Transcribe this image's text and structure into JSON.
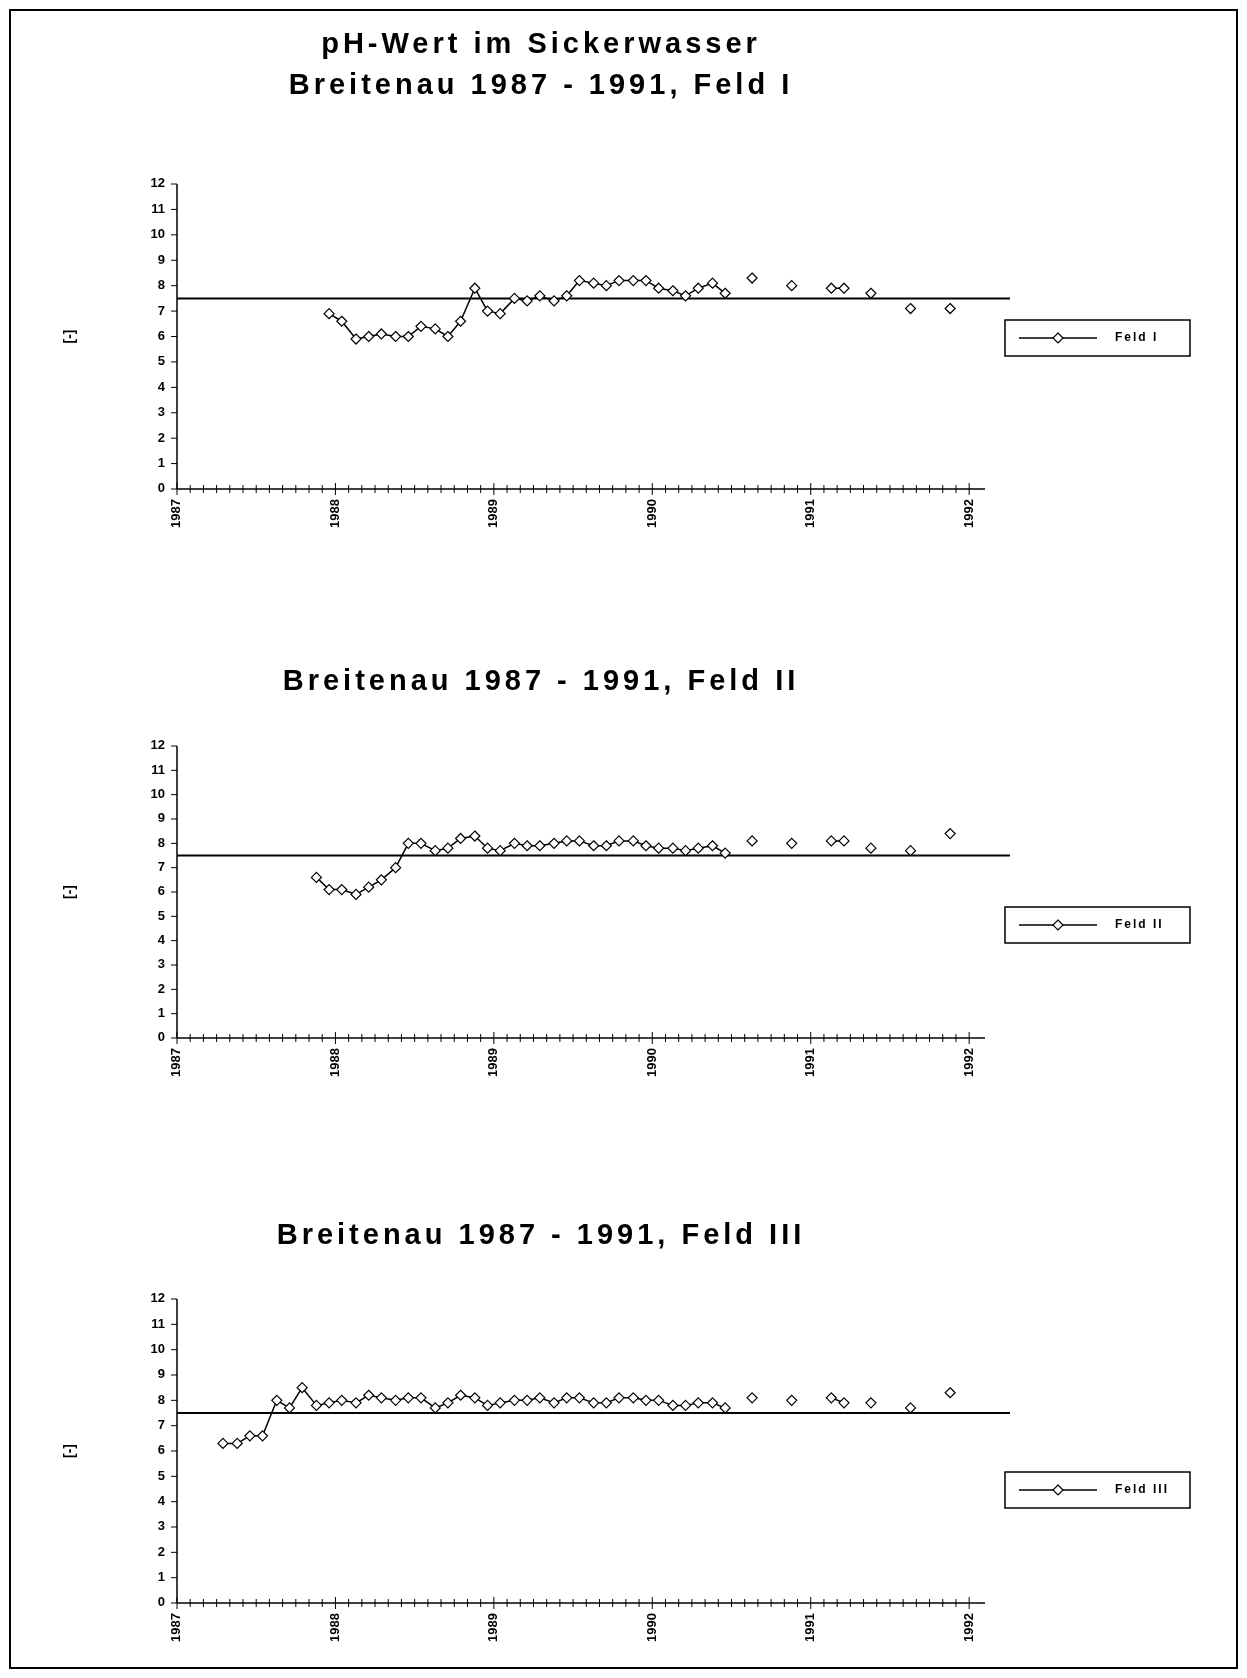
{
  "chart_data": [
    {
      "type": "line",
      "title": "pH-Wert im Sickerwasser",
      "subtitle": "Breitenau 1987 - 1991, Feld I",
      "ylabel": "[-]",
      "xlim": [
        1987,
        1992.1
      ],
      "xticks": [
        1987,
        1988,
        1989,
        1990,
        1991,
        1992
      ],
      "ylim": [
        0,
        12
      ],
      "yticks": [
        0,
        1,
        2,
        3,
        4,
        5,
        6,
        7,
        8,
        9,
        10,
        11,
        12
      ],
      "marker": "diamond",
      "legend": "right",
      "ref_lines": [
        {
          "axis": "y",
          "value": 7.5,
          "color": "#000000"
        }
      ],
      "x": [
        1987.96,
        1988.04,
        1988.13,
        1988.21,
        1988.29,
        1988.38,
        1988.46,
        1988.54,
        1988.63,
        1988.71,
        1988.79,
        1988.88,
        1988.96,
        1989.04,
        1989.13,
        1989.21,
        1989.29,
        1989.38,
        1989.46,
        1989.54,
        1989.63,
        1989.71,
        1989.79,
        1989.88,
        1989.96,
        1990.04,
        1990.13,
        1990.21,
        1990.29,
        1990.38,
        1990.46,
        1990.54,
        1990.63,
        1990.71,
        1990.79,
        1990.88,
        1990.96,
        1991.04,
        1991.13,
        1991.21,
        1991.29,
        1991.38,
        1991.46,
        1991.54,
        1991.63,
        1991.71,
        1991.79,
        1991.88
      ],
      "series": [
        {
          "name": "Feld I",
          "color": "#000000",
          "values": [
            6.9,
            6.6,
            5.9,
            6.0,
            6.1,
            6.0,
            6.0,
            6.4,
            6.3,
            6.0,
            6.6,
            7.9,
            7.0,
            6.9,
            7.5,
            7.4,
            7.6,
            7.4,
            7.6,
            8.2,
            8.1,
            8.0,
            8.2,
            8.2,
            8.2,
            7.9,
            7.8,
            7.6,
            7.9,
            8.1,
            7.7,
            null,
            8.3,
            null,
            null,
            8.0,
            null,
            null,
            7.9,
            7.9,
            null,
            7.7,
            null,
            null,
            7.1,
            null,
            null,
            7.1
          ]
        }
      ]
    },
    {
      "type": "line",
      "title": "Breitenau 1987 - 1991, Feld II",
      "ylabel": "[-]",
      "xlim": [
        1987,
        1992.1
      ],
      "xticks": [
        1987,
        1988,
        1989,
        1990,
        1991,
        1992
      ],
      "ylim": [
        0,
        12
      ],
      "yticks": [
        0,
        1,
        2,
        3,
        4,
        5,
        6,
        7,
        8,
        9,
        10,
        11,
        12
      ],
      "marker": "diamond",
      "legend": "right",
      "ref_lines": [
        {
          "axis": "y",
          "value": 7.5,
          "color": "#000000"
        }
      ],
      "x": [
        1987.88,
        1987.96,
        1988.04,
        1988.13,
        1988.21,
        1988.29,
        1988.38,
        1988.46,
        1988.54,
        1988.63,
        1988.71,
        1988.79,
        1988.88,
        1988.96,
        1989.04,
        1989.13,
        1989.21,
        1989.29,
        1989.38,
        1989.46,
        1989.54,
        1989.63,
        1989.71,
        1989.79,
        1989.88,
        1989.96,
        1990.04,
        1990.13,
        1990.21,
        1990.29,
        1990.38,
        1990.46,
        1990.54,
        1990.63,
        1990.71,
        1990.79,
        1990.88,
        1990.96,
        1991.04,
        1991.13,
        1991.21,
        1991.29,
        1991.38,
        1991.46,
        1991.54,
        1991.63,
        1991.71,
        1991.79,
        1991.88
      ],
      "series": [
        {
          "name": "Feld II",
          "color": "#000000",
          "values": [
            6.6,
            6.1,
            6.1,
            5.9,
            6.2,
            6.5,
            7.0,
            8.0,
            8.0,
            7.7,
            7.8,
            8.2,
            8.3,
            7.8,
            7.7,
            8.0,
            7.9,
            7.9,
            8.0,
            8.1,
            8.1,
            7.9,
            7.9,
            8.1,
            8.1,
            7.9,
            7.8,
            7.8,
            7.7,
            7.8,
            7.9,
            7.6,
            null,
            8.1,
            null,
            null,
            8.0,
            null,
            null,
            8.1,
            8.1,
            null,
            7.8,
            null,
            null,
            7.7,
            null,
            null,
            8.4
          ]
        }
      ]
    },
    {
      "type": "line",
      "title": "Breitenau 1987 - 1991, Feld III",
      "ylabel": "[-]",
      "xlim": [
        1987,
        1992.1
      ],
      "xticks": [
        1987,
        1988,
        1989,
        1990,
        1991,
        1992
      ],
      "ylim": [
        0,
        12
      ],
      "yticks": [
        0,
        1,
        2,
        3,
        4,
        5,
        6,
        7,
        8,
        9,
        10,
        11,
        12
      ],
      "marker": "diamond",
      "legend": "right",
      "ref_lines": [
        {
          "axis": "y",
          "value": 7.5,
          "color": "#000000"
        }
      ],
      "x": [
        1987.29,
        1987.38,
        1987.46,
        1987.54,
        1987.63,
        1987.71,
        1987.79,
        1987.88,
        1987.96,
        1988.04,
        1988.13,
        1988.21,
        1988.29,
        1988.38,
        1988.46,
        1988.54,
        1988.63,
        1988.71,
        1988.79,
        1988.88,
        1988.96,
        1989.04,
        1989.13,
        1989.21,
        1989.29,
        1989.38,
        1989.46,
        1989.54,
        1989.63,
        1989.71,
        1989.79,
        1989.88,
        1989.96,
        1990.04,
        1990.13,
        1990.21,
        1990.29,
        1990.38,
        1990.46,
        1990.54,
        1990.63,
        1990.71,
        1990.79,
        1990.88,
        1990.96,
        1991.04,
        1991.13,
        1991.21,
        1991.29,
        1991.38,
        1991.46,
        1991.54,
        1991.63,
        1991.71,
        1991.79,
        1991.88
      ],
      "series": [
        {
          "name": "Feld III",
          "color": "#000000",
          "values": [
            6.3,
            6.3,
            6.6,
            6.6,
            8.0,
            7.7,
            8.5,
            7.8,
            7.9,
            8.0,
            7.9,
            8.2,
            8.1,
            8.0,
            8.1,
            8.1,
            7.7,
            7.9,
            8.2,
            8.1,
            7.8,
            7.9,
            8.0,
            8.0,
            8.1,
            7.9,
            8.1,
            8.1,
            7.9,
            7.9,
            8.1,
            8.1,
            8.0,
            8.0,
            7.8,
            7.8,
            7.9,
            7.9,
            7.7,
            null,
            8.1,
            null,
            null,
            8.0,
            null,
            null,
            8.1,
            7.9,
            null,
            7.9,
            null,
            null,
            7.7,
            null,
            null,
            8.3
          ]
        }
      ]
    }
  ]
}
